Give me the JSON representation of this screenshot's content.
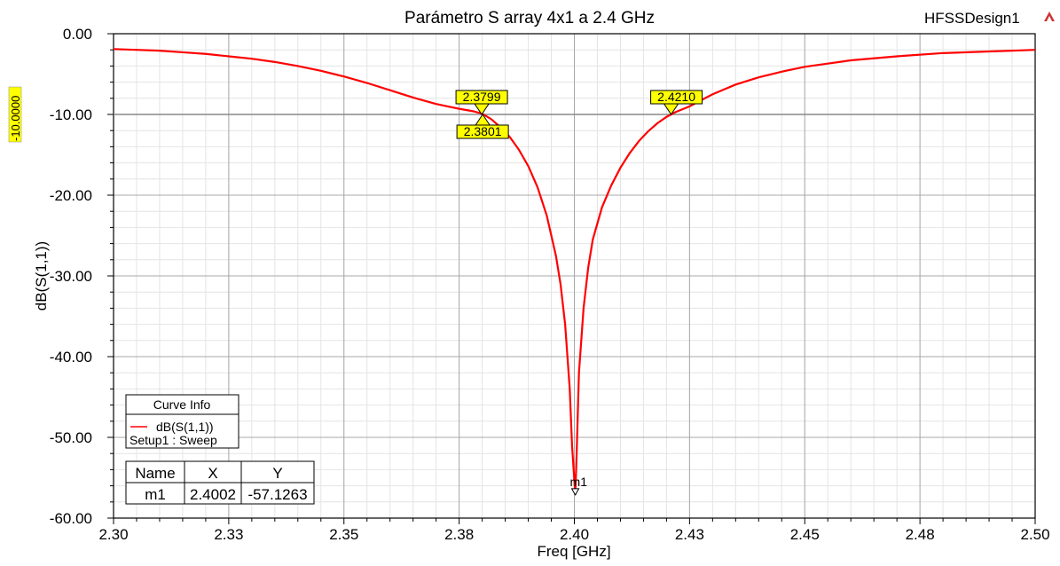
{
  "header": {
    "title": "Parámetro S array 4x1 a 2.4 GHz",
    "design_name": "HFSSDesign1"
  },
  "chart_data": {
    "type": "line",
    "title": "Parámetro S array 4x1 a 2.4 GHz",
    "xlabel": "Freq [GHz]",
    "ylabel": "dB(S(1,1))",
    "xlim": [
      2.3,
      2.5
    ],
    "ylim": [
      -60,
      0
    ],
    "xticks": [
      2.3,
      2.325,
      2.35,
      2.375,
      2.4,
      2.425,
      2.45,
      2.475,
      2.5
    ],
    "xtick_labels": [
      "2.30",
      "2.33",
      "2.35",
      "2.38",
      "2.40",
      "2.43",
      "2.45",
      "2.48",
      "2.50"
    ],
    "yticks": [
      0,
      -10,
      -20,
      -30,
      -40,
      -50,
      -60
    ],
    "ytick_labels": [
      "0.00",
      "-10.00",
      "-20.00",
      "-30.00",
      "-40.00",
      "-50.00",
      "-60.00"
    ],
    "grid": true,
    "reference_line": {
      "y": -10,
      "label": "-10.0000"
    },
    "series": [
      {
        "name": "dB(S(1,1))",
        "color": "#ff0000",
        "x": [
          2.3,
          2.305,
          2.31,
          2.315,
          2.32,
          2.325,
          2.33,
          2.335,
          2.34,
          2.345,
          2.35,
          2.355,
          2.36,
          2.365,
          2.37,
          2.375,
          2.378,
          2.38,
          2.382,
          2.384,
          2.386,
          2.388,
          2.39,
          2.392,
          2.394,
          2.396,
          2.397,
          2.398,
          2.399,
          2.3995,
          2.4002,
          2.4005,
          2.401,
          2.402,
          2.403,
          2.404,
          2.406,
          2.408,
          2.41,
          2.412,
          2.414,
          2.416,
          2.418,
          2.42,
          2.422,
          2.425,
          2.43,
          2.435,
          2.44,
          2.445,
          2.45,
          2.455,
          2.46,
          2.47,
          2.48,
          2.49,
          2.5
        ],
        "y": [
          -1.9,
          -2.0,
          -2.1,
          -2.3,
          -2.5,
          -2.8,
          -3.1,
          -3.5,
          -4.0,
          -4.6,
          -5.3,
          -6.1,
          -7.0,
          -7.9,
          -8.7,
          -9.3,
          -9.6,
          -9.9,
          -10.6,
          -11.6,
          -12.8,
          -14.4,
          -16.4,
          -19.0,
          -22.5,
          -27.5,
          -31.0,
          -36.0,
          -44.0,
          -51.0,
          -57.1,
          -52.0,
          -42.0,
          -34.0,
          -29.0,
          -25.5,
          -21.5,
          -18.8,
          -16.6,
          -14.8,
          -13.3,
          -12.1,
          -11.1,
          -10.3,
          -9.7,
          -9.0,
          -7.5,
          -6.3,
          -5.4,
          -4.7,
          -4.1,
          -3.7,
          -3.3,
          -2.8,
          -2.4,
          -2.2,
          -2.0
        ]
      }
    ],
    "markers": [
      {
        "label": "2.3799",
        "x": 2.3799,
        "y": -10.0,
        "kind": "above"
      },
      {
        "label": "2.3801",
        "x": 2.3801,
        "y": -10.0,
        "kind": "below"
      },
      {
        "label": "2.4210",
        "x": 2.421,
        "y": -10.0,
        "kind": "above"
      },
      {
        "label": "m1",
        "x": 2.4002,
        "y": -57.1263,
        "kind": "point"
      }
    ]
  },
  "legend": {
    "title": "Curve Info",
    "entry": "dB(S(1,1))",
    "setup": "Setup1 : Sweep"
  },
  "marker_table": {
    "headers": [
      "Name",
      "X",
      "Y"
    ],
    "rows": [
      [
        "m1",
        "2.4002",
        "-57.1263"
      ]
    ]
  }
}
